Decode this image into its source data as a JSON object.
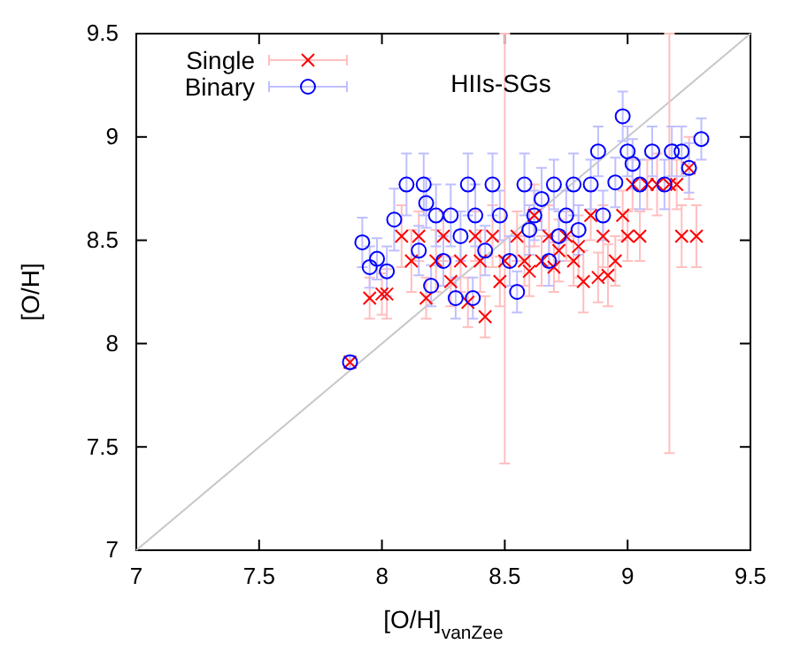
{
  "chart_data": {
    "type": "scatter",
    "xlabel": "[O/H]$_{vanZee}$",
    "ylabel": "[O/H]",
    "annotations": [
      "HIIs-SGs"
    ],
    "xlim": [
      7,
      9.5
    ],
    "ylim": [
      7,
      9.5
    ],
    "xticks": [
      7,
      7.5,
      8,
      8.5,
      9,
      9.5
    ],
    "yticks": [
      7,
      7.5,
      8,
      8.5,
      9,
      9.5
    ],
    "legend": "top left",
    "grid": false,
    "series": [
      {
        "type": "line",
        "color": "#c8c8c8",
        "x": [
          7,
          9.5
        ],
        "values": [
          7,
          9.5
        ]
      },
      {
        "name": "Single",
        "color": "#ff0000",
        "marker": "cross",
        "x": [
          7.87,
          7.95,
          8.0,
          8.02,
          8.08,
          8.12,
          8.15,
          8.18,
          8.22,
          8.25,
          8.28,
          8.32,
          8.35,
          8.38,
          8.4,
          8.42,
          8.45,
          8.48,
          8.5,
          8.55,
          8.58,
          8.6,
          8.62,
          8.65,
          8.68,
          8.7,
          8.72,
          8.75,
          8.78,
          8.8,
          8.82,
          8.85,
          8.88,
          8.9,
          8.92,
          8.95,
          8.98,
          9.0,
          9.02,
          9.05,
          9.08,
          9.12,
          9.17,
          9.2,
          9.25,
          9.22,
          9.28
        ],
        "values": [
          7.91,
          8.22,
          8.24,
          8.24,
          8.52,
          8.4,
          8.52,
          8.22,
          8.4,
          8.52,
          8.3,
          8.4,
          8.2,
          8.52,
          8.4,
          8.13,
          8.52,
          8.3,
          8.4,
          8.52,
          8.4,
          8.35,
          8.62,
          8.4,
          8.52,
          8.37,
          8.45,
          8.52,
          8.4,
          8.47,
          8.3,
          8.62,
          8.32,
          8.52,
          8.33,
          8.4,
          8.62,
          8.52,
          8.77,
          8.52,
          8.77,
          8.77,
          8.77,
          8.77,
          8.85,
          8.52,
          8.52
        ],
        "errors": [
          0.03,
          0.1,
          0.1,
          0.12,
          0.15,
          0.15,
          0.12,
          0.1,
          0.15,
          0.12,
          0.12,
          0.15,
          0.12,
          0.12,
          0.15,
          0.1,
          0.15,
          0.12,
          [
            7.42,
            9.5
          ],
          0.12,
          0.12,
          0.12,
          0.15,
          0.12,
          0.15,
          0.12,
          0.15,
          0.12,
          0.12,
          0.15,
          0.15,
          0.12,
          0.12,
          0.15,
          0.15,
          0.12,
          0.12,
          0.12,
          0.12,
          0.12,
          0.12,
          0.15,
          [
            7.47,
            9.5
          ],
          0.12,
          0.15,
          0.15,
          0.15
        ]
      },
      {
        "name": "Binary",
        "color": "#0000ff",
        "marker": "circle",
        "x": [
          7.87,
          7.92,
          7.95,
          7.98,
          8.02,
          8.05,
          8.1,
          8.15,
          8.17,
          8.18,
          8.2,
          8.22,
          8.25,
          8.28,
          8.3,
          8.32,
          8.35,
          8.37,
          8.38,
          8.42,
          8.45,
          8.48,
          8.52,
          8.55,
          8.58,
          8.6,
          8.62,
          8.65,
          8.68,
          8.7,
          8.72,
          8.75,
          8.78,
          8.8,
          8.85,
          8.88,
          8.9,
          8.95,
          8.98,
          9.0,
          9.02,
          9.05,
          9.1,
          9.15,
          9.18,
          9.22,
          9.25,
          9.3
        ],
        "values": [
          7.91,
          8.49,
          8.37,
          8.41,
          8.35,
          8.6,
          8.77,
          8.45,
          8.77,
          8.68,
          8.28,
          8.62,
          8.4,
          8.62,
          8.22,
          8.52,
          8.77,
          8.22,
          8.62,
          8.45,
          8.77,
          8.62,
          8.4,
          8.25,
          8.77,
          8.55,
          8.62,
          8.7,
          8.4,
          8.77,
          8.52,
          8.62,
          8.77,
          8.55,
          8.77,
          8.93,
          8.62,
          8.78,
          9.1,
          8.93,
          8.87,
          8.77,
          8.93,
          8.77,
          8.93,
          8.93,
          8.85,
          8.99
        ],
        "errors": [
          0.03,
          0.12,
          0.1,
          0.1,
          0.12,
          0.15,
          0.15,
          0.12,
          0.15,
          0.12,
          0.1,
          0.15,
          0.12,
          0.15,
          0.1,
          0.12,
          0.15,
          0.1,
          0.15,
          0.12,
          0.15,
          0.12,
          0.12,
          0.1,
          0.15,
          0.12,
          0.12,
          0.15,
          0.12,
          0.12,
          0.12,
          0.12,
          0.15,
          0.12,
          0.12,
          0.12,
          0.12,
          0.12,
          0.12,
          0.12,
          0.12,
          0.12,
          0.12,
          0.12,
          0.12,
          0.12,
          0.12,
          0.1
        ]
      }
    ]
  }
}
